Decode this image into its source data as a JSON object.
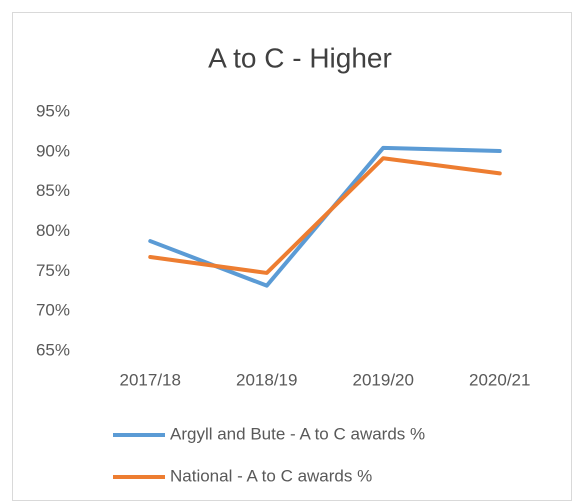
{
  "chart_data": {
    "type": "line",
    "title": "A to C - Higher",
    "categories": [
      "2017/18",
      "2018/19",
      "2019/20",
      "2020/21"
    ],
    "series": [
      {
        "name": "Argyll and Bute - A to C awards %",
        "color": "#5b9bd5",
        "values": [
          78.8,
          73.2,
          90.5,
          90.1
        ]
      },
      {
        "name": "National - A to C awards %",
        "color": "#ed7d31",
        "values": [
          76.8,
          74.8,
          89.2,
          87.3
        ]
      }
    ],
    "ylim": [
      65,
      95
    ],
    "yticks": [
      {
        "value": 65,
        "label": "65%"
      },
      {
        "value": 70,
        "label": "70%"
      },
      {
        "value": 75,
        "label": "75%"
      },
      {
        "value": 80,
        "label": "80%"
      },
      {
        "value": 85,
        "label": "85%"
      },
      {
        "value": 90,
        "label": "90%"
      },
      {
        "value": 95,
        "label": "95%"
      }
    ],
    "grid": false
  }
}
